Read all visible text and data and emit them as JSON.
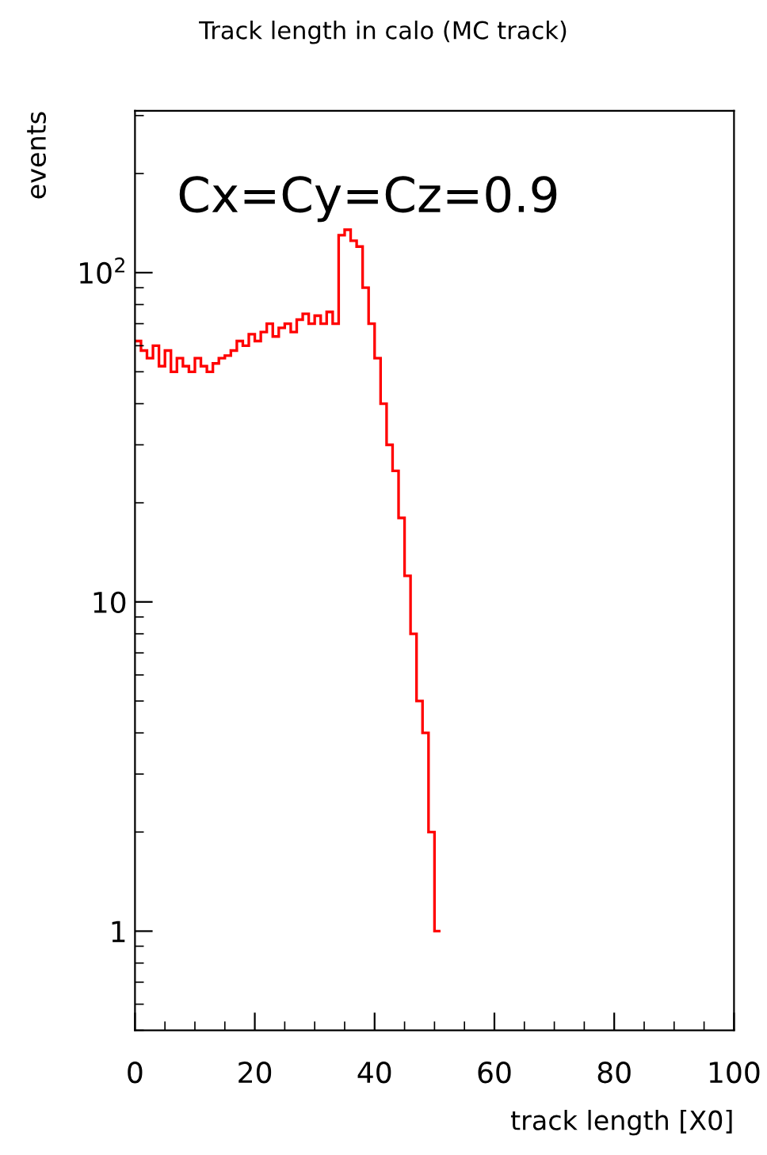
{
  "chart_data": {
    "type": "histogram",
    "title": "Track length in calo (MC track)",
    "xlabel": "track length [X0]",
    "ylabel": "events",
    "annotations": [
      "Cx=Cy=Cz=0.9"
    ],
    "bins": [
      0,
      1,
      2,
      3,
      4,
      5,
      6,
      7,
      8,
      9,
      10,
      11,
      12,
      13,
      14,
      15,
      16,
      17,
      18,
      19,
      20,
      21,
      22,
      23,
      24,
      25,
      26,
      27,
      28,
      29,
      30,
      31,
      32,
      33,
      34,
      35,
      36,
      37,
      38,
      39,
      40,
      41,
      42,
      43,
      44,
      45,
      46,
      47,
      48,
      49,
      50,
      51
    ],
    "values": [
      62,
      58,
      55,
      60,
      52,
      58,
      50,
      55,
      52,
      50,
      55,
      52,
      50,
      53,
      55,
      56,
      58,
      62,
      60,
      65,
      62,
      66,
      70,
      64,
      68,
      70,
      66,
      72,
      75,
      70,
      74,
      70,
      76,
      70,
      130,
      135,
      125,
      120,
      90,
      70,
      55,
      40,
      30,
      25,
      18,
      12,
      8,
      5,
      4,
      2,
      1
    ],
    "color": "#ff0000",
    "log": "y",
    "xlim": [
      0,
      100
    ],
    "xticks": [
      0,
      20,
      40,
      60,
      80,
      100
    ],
    "ylim": [
      0.5,
      310
    ],
    "yticks": [
      1,
      10,
      {
        "value": 100,
        "label": "10$^{2}$"
      }
    ],
    "grid": false,
    "legend": false
  }
}
